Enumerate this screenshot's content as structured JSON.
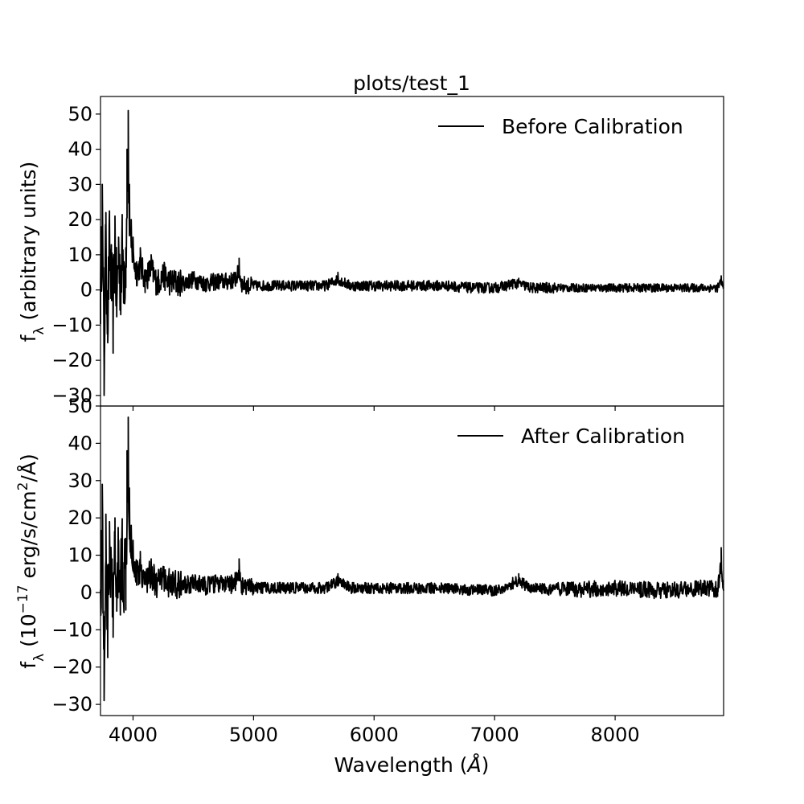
{
  "chart_data": [
    {
      "type": "line",
      "panel": "top",
      "title": "plots/test_1",
      "xlabel": "",
      "ylabel_main": "f",
      "ylabel_sub": "λ",
      "ylabel_rest": " (arbitrary units)",
      "xlim": [
        3730,
        8900
      ],
      "ylim": [
        -33,
        55
      ],
      "yticks": [
        -30,
        -20,
        -10,
        0,
        10,
        20,
        30,
        40,
        50
      ],
      "ytick_labels": [
        "−30",
        "−20",
        "−10",
        "0",
        "10",
        "20",
        "30",
        "40",
        "50"
      ],
      "legend": "upper-right",
      "grid": false,
      "series": [
        {
          "name": "Before Calibration",
          "color": "#000000",
          "x": [
            3730,
            3745,
            3760,
            3775,
            3790,
            3805,
            3820,
            3835,
            3850,
            3865,
            3880,
            3895,
            3910,
            3925,
            3940,
            3950,
            3960,
            3970,
            3985,
            4000,
            4030,
            4060,
            4100,
            4150,
            4200,
            4250,
            4300,
            4400,
            4500,
            4600,
            4700,
            4800,
            4850,
            4880,
            4900,
            4950,
            5000,
            5200,
            5400,
            5600,
            5700,
            5800,
            6000,
            6200,
            6400,
            6600,
            6800,
            7000,
            7100,
            7150,
            7200,
            7300,
            7500,
            7700,
            7900,
            8100,
            8300,
            8500,
            8700,
            8800,
            8850,
            8880,
            8900
          ],
          "y": [
            0,
            30,
            -30,
            22,
            -15,
            20,
            5,
            -12,
            21,
            -5,
            15,
            3,
            18,
            8,
            12,
            40,
            51,
            30,
            20,
            15,
            8,
            12,
            5,
            10,
            3,
            7,
            4,
            3,
            5,
            3,
            4,
            4,
            5,
            9,
            3,
            2,
            2,
            2,
            2,
            2,
            5,
            2,
            2,
            2,
            2,
            2,
            1,
            1,
            2,
            3,
            3,
            1,
            1,
            1,
            1,
            1,
            1,
            1,
            1,
            1,
            1,
            4,
            0.5
          ]
        }
      ]
    },
    {
      "type": "line",
      "panel": "bottom",
      "title": "",
      "xlabel_main": "Wavelength (",
      "xlabel_unit": "Å",
      "xlabel_end": ")",
      "ylabel_main": "f",
      "ylabel_sub": "λ",
      "ylabel_mid1": " (10",
      "ylabel_exp1": "−17",
      "ylabel_mid2": " erg/s/cm",
      "ylabel_exp2": "2",
      "ylabel_mid3": "/",
      "ylabel_unit": "Å",
      "ylabel_end": ")",
      "xlim": [
        3730,
        8900
      ],
      "ylim": [
        -33,
        50
      ],
      "xticks": [
        4000,
        5000,
        6000,
        7000,
        8000
      ],
      "xtick_labels": [
        "4000",
        "5000",
        "6000",
        "7000",
        "8000"
      ],
      "yticks": [
        -30,
        -20,
        -10,
        0,
        10,
        20,
        30,
        40,
        50
      ],
      "ytick_labels": [
        "−30",
        "−20",
        "−10",
        "0",
        "10",
        "20",
        "30",
        "40",
        "50"
      ],
      "legend": "upper-right",
      "grid": false,
      "series": [
        {
          "name": "After Calibration",
          "color": "#000000",
          "x": [
            3730,
            3745,
            3760,
            3775,
            3790,
            3805,
            3820,
            3835,
            3850,
            3865,
            3880,
            3895,
            3910,
            3925,
            3940,
            3950,
            3960,
            3970,
            3985,
            4000,
            4030,
            4060,
            4100,
            4150,
            4200,
            4250,
            4300,
            4400,
            4500,
            4600,
            4700,
            4800,
            4850,
            4880,
            4900,
            4950,
            5000,
            5200,
            5400,
            5600,
            5700,
            5800,
            6000,
            6200,
            6400,
            6600,
            6800,
            7000,
            7100,
            7150,
            7200,
            7300,
            7500,
            7700,
            7900,
            8100,
            8300,
            8500,
            8700,
            8800,
            8850,
            8880,
            8900
          ],
          "y": [
            0,
            29,
            -29,
            21,
            -14,
            19,
            4,
            -12,
            20,
            -5,
            14,
            3,
            17,
            8,
            12,
            38,
            47,
            28,
            18,
            14,
            8,
            11,
            5,
            9,
            3,
            7,
            4,
            3,
            4,
            3,
            4,
            3,
            5,
            9,
            3,
            2,
            2,
            2,
            2,
            2,
            5,
            2,
            2,
            2,
            2,
            2,
            1,
            1,
            2,
            4,
            5,
            2,
            1,
            1,
            2,
            2,
            1,
            1,
            2,
            2,
            1,
            12,
            0.5
          ]
        }
      ]
    }
  ]
}
